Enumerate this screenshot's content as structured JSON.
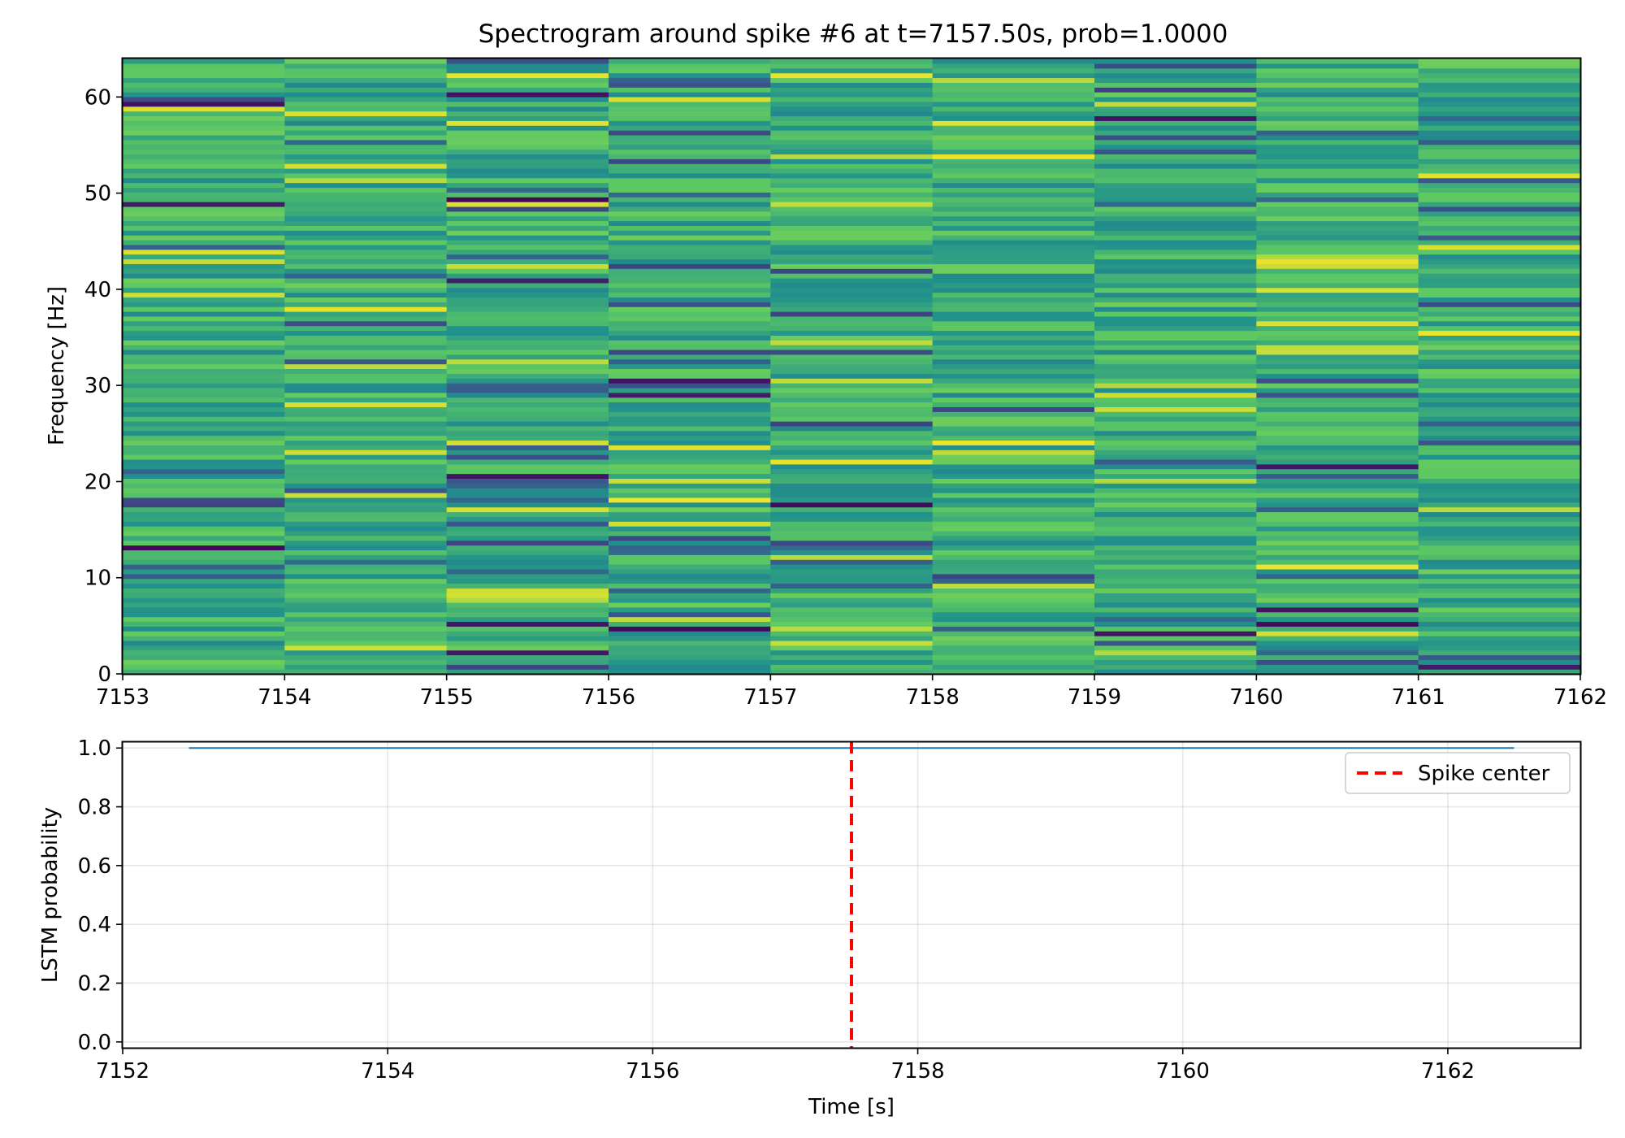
{
  "chart_data": [
    {
      "type": "heatmap",
      "title": "Spectrogram around spike #6 at t=7157.50s, prob=1.0000",
      "xlabel": "",
      "ylabel": "Frequency [Hz]",
      "xlim": [
        7153,
        7162
      ],
      "ylim": [
        0,
        64
      ],
      "x_ticks": [
        "7153",
        "7154",
        "7155",
        "7156",
        "7157",
        "7158",
        "7159",
        "7160",
        "7161",
        "7162"
      ],
      "y_ticks": [
        "0",
        "10",
        "20",
        "30",
        "40",
        "50",
        "60"
      ],
      "time_bins": 9,
      "frequency_bins": 129,
      "colormap": "viridis",
      "grid": false
    },
    {
      "type": "line",
      "title": "",
      "xlabel": "Time [s]",
      "ylabel": "LSTM probability",
      "xlim": [
        7152,
        7163
      ],
      "ylim": [
        -0.02,
        1.02
      ],
      "x_ticks": [
        "7152",
        "7154",
        "7156",
        "7158",
        "7160",
        "7162"
      ],
      "y_ticks": [
        "0.0",
        "0.2",
        "0.4",
        "0.6",
        "0.8",
        "1.0"
      ],
      "grid": true,
      "legend_position": "top-right",
      "series": [
        {
          "name": "",
          "color": "#1f77b4",
          "x": [
            7152.5,
            7162.5
          ],
          "y": [
            1.0,
            1.0
          ]
        }
      ],
      "vlines": [
        {
          "name": "Spike center",
          "x": 7157.5,
          "color": "#ff0000",
          "style": "dashed"
        }
      ]
    }
  ]
}
